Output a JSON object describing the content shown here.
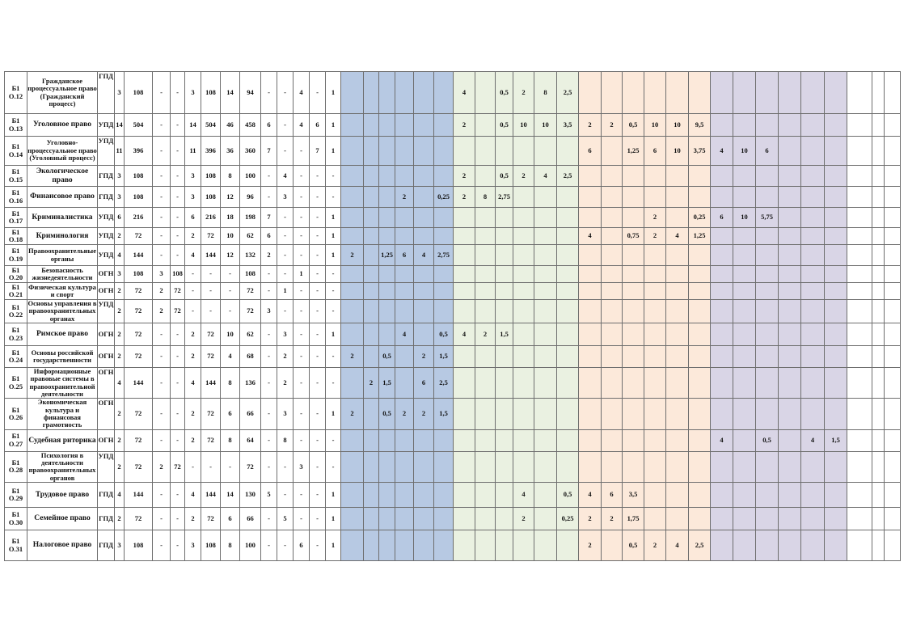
{
  "document": {
    "type": "curriculum-plan-table",
    "section_colors": {
      "blue": "#b7c9e3",
      "green": "#eaf1e1",
      "orange": "#fce9da",
      "purple": "#d9d5e6"
    },
    "rows": [
      {
        "code": "Б1 О.12",
        "name": "Гражданское процессуальное право (Гражданский процесс)",
        "dept": "ГПД",
        "cols": [
          "3",
          "108",
          "-",
          "-",
          "3",
          "108",
          "14",
          "94",
          "-",
          "-",
          "4",
          "-",
          "1"
        ],
        "green": [
          "4",
          "",
          "0,5",
          "2",
          "8",
          "2,5"
        ]
      },
      {
        "code": "Б1 О.13",
        "name": "Уголовное право",
        "dept": "УПД",
        "cols": [
          "14",
          "504",
          "-",
          "-",
          "14",
          "504",
          "46",
          "458",
          "6",
          "-",
          "4",
          "6",
          "1"
        ],
        "green": [
          "2",
          "",
          "0,5",
          "10",
          "10",
          "3,5"
        ],
        "orange": [
          "2",
          "2",
          "0,5",
          "10",
          "10",
          "9,5"
        ]
      },
      {
        "code": "Б1 О.14",
        "name": "Уголовно-процессуальное право (Уголовный процесс)",
        "dept": "УПД",
        "cols": [
          "11",
          "396",
          "-",
          "-",
          "11",
          "396",
          "36",
          "360",
          "7",
          "-",
          "-",
          "7",
          "1"
        ],
        "orange": [
          "6",
          "",
          "1,25",
          "6",
          "10",
          "3,75"
        ],
        "purple": [
          "4",
          "10",
          "6",
          "",
          "",
          ""
        ]
      },
      {
        "code": "Б1 О.15",
        "name": "Экологическое право",
        "dept": "ГПД",
        "cols": [
          "3",
          "108",
          "-",
          "-",
          "3",
          "108",
          "8",
          "100",
          "-",
          "4",
          "-",
          "-",
          "-"
        ],
        "green": [
          "2",
          "",
          "0,5",
          "2",
          "4",
          "2,5"
        ]
      },
      {
        "code": "Б1 О.16",
        "name": "Финансовое право",
        "dept": "ГПД",
        "cols": [
          "3",
          "108",
          "-",
          "-",
          "3",
          "108",
          "12",
          "96",
          "-",
          "3",
          "-",
          "-",
          "-"
        ],
        "blue": [
          "",
          "",
          "",
          "2",
          "",
          "0,25"
        ],
        "green": [
          "2",
          "8",
          "2,75",
          "",
          "",
          ""
        ]
      },
      {
        "code": "Б1 О.17",
        "name": "Криминалистика",
        "dept": "УПД",
        "cols": [
          "6",
          "216",
          "-",
          "-",
          "6",
          "216",
          "18",
          "198",
          "7",
          "-",
          "-",
          "-",
          "1"
        ],
        "orange": [
          "",
          "",
          "",
          "2",
          "",
          "0,25"
        ],
        "purple": [
          "6",
          "10",
          "5,75",
          "",
          "",
          ""
        ]
      },
      {
        "code": "Б1 О.18",
        "name": "Криминология",
        "dept": "УПД",
        "cols": [
          "2",
          "72",
          "-",
          "-",
          "2",
          "72",
          "10",
          "62",
          "6",
          "-",
          "-",
          "-",
          "1"
        ],
        "orange": [
          "4",
          "",
          "0,75",
          "2",
          "4",
          "1,25"
        ]
      },
      {
        "code": "Б1 О.19",
        "name": "Правоохранительные органы",
        "dept": "УПД",
        "cols": [
          "4",
          "144",
          "-",
          "-",
          "4",
          "144",
          "12",
          "132",
          "2",
          "-",
          "-",
          "-",
          "1"
        ],
        "blue": [
          "2",
          "",
          "1,25",
          "6",
          "4",
          "2,75"
        ]
      },
      {
        "code": "Б1 О.20",
        "name": "Безопасность жизнедеятельности",
        "dept": "ОГН",
        "cols": [
          "3",
          "108",
          "3",
          "108",
          "-",
          "-",
          "-",
          "108",
          "-",
          "-",
          "1",
          "-",
          "-"
        ]
      },
      {
        "code": "Б1 О.21",
        "name": "Физическая культура и спорт",
        "dept": "ОГН",
        "cols": [
          "2",
          "72",
          "2",
          "72",
          "-",
          "-",
          "-",
          "72",
          "-",
          "1",
          "-",
          "-",
          "-"
        ]
      },
      {
        "code": "Б1 О.22",
        "name": "Основы управления в правоохранительных органах",
        "dept": "УПД",
        "cols": [
          "2",
          "72",
          "2",
          "72",
          "-",
          "-",
          "-",
          "72",
          "3",
          "-",
          "-",
          "-",
          "-"
        ]
      },
      {
        "code": "Б1 О.23",
        "name": "Римское право",
        "dept": "ОГН",
        "cols": [
          "2",
          "72",
          "-",
          "-",
          "2",
          "72",
          "10",
          "62",
          "-",
          "3",
          "-",
          "-",
          "1"
        ],
        "blue": [
          "",
          "",
          "",
          "4",
          "",
          "0,5"
        ],
        "green": [
          "4",
          "2",
          "1,5",
          "",
          "",
          ""
        ]
      },
      {
        "code": "Б1 О.24",
        "name": "Основы российской государственности",
        "dept": "ОГН",
        "cols": [
          "2",
          "72",
          "-",
          "-",
          "2",
          "72",
          "4",
          "68",
          "-",
          "2",
          "-",
          "-",
          "-"
        ],
        "blue": [
          "2",
          "",
          "0,5",
          "",
          "2",
          "1,5"
        ]
      },
      {
        "code": "Б1 О.25",
        "name": "Информационные правовые системы в правоохранительной деятельности",
        "dept": "ОГН",
        "cols": [
          "4",
          "144",
          "-",
          "-",
          "4",
          "144",
          "8",
          "136",
          "-",
          "2",
          "-",
          "-",
          "-"
        ],
        "blue": [
          "",
          "2",
          "1,5",
          "",
          "6",
          "2,5"
        ]
      },
      {
        "code": "Б1 О.26",
        "name": "Экономическая культура и финансовая грамотность",
        "dept": "ОГН",
        "cols": [
          "2",
          "72",
          "-",
          "-",
          "2",
          "72",
          "6",
          "66",
          "-",
          "3",
          "-",
          "-",
          "1"
        ],
        "blue": [
          "2",
          "",
          "0,5",
          "2",
          "2",
          "1,5"
        ]
      },
      {
        "code": "Б1 О.27",
        "name": "Судебная риторика",
        "dept": "ОГН",
        "cols": [
          "2",
          "72",
          "-",
          "-",
          "2",
          "72",
          "8",
          "64",
          "-",
          "8",
          "-",
          "-",
          "-"
        ],
        "purple": [
          "4",
          "",
          "0,5",
          "",
          "4",
          "1,5"
        ]
      },
      {
        "code": "Б1 О.28",
        "name": "Психология в деятельности правоохранительных органов",
        "dept": "УПД",
        "cols": [
          "2",
          "72",
          "2",
          "72",
          "-",
          "-",
          "-",
          "72",
          "-",
          "-",
          "3",
          "-",
          "-"
        ]
      },
      {
        "code": "Б1 О.29",
        "name": "Трудовое право",
        "dept": "ГПД",
        "cols": [
          "4",
          "144",
          "-",
          "-",
          "4",
          "144",
          "14",
          "130",
          "5",
          "-",
          "-",
          "-",
          "1"
        ],
        "green": [
          "",
          "",
          "",
          "4",
          "",
          "0,5"
        ],
        "orange": [
          "4",
          "6",
          "3,5",
          "",
          "",
          ""
        ]
      },
      {
        "code": "Б1 О.30",
        "name": "Семейное право",
        "dept": "ГПД",
        "cols": [
          "2",
          "72",
          "-",
          "-",
          "2",
          "72",
          "6",
          "66",
          "-",
          "5",
          "-",
          "-",
          "1"
        ],
        "green": [
          "",
          "",
          "",
          "2",
          "",
          "0,25"
        ],
        "orange": [
          "2",
          "2",
          "1,75",
          "",
          "",
          ""
        ]
      },
      {
        "code": "Б1 О.31",
        "name": "Налоговое право",
        "dept": "ГПД",
        "cols": [
          "3",
          "108",
          "-",
          "-",
          "3",
          "108",
          "8",
          "100",
          "-",
          "-",
          "6",
          "-",
          "1"
        ],
        "orange": [
          "2",
          "",
          "0,5",
          "2",
          "4",
          "2,5"
        ]
      }
    ]
  }
}
